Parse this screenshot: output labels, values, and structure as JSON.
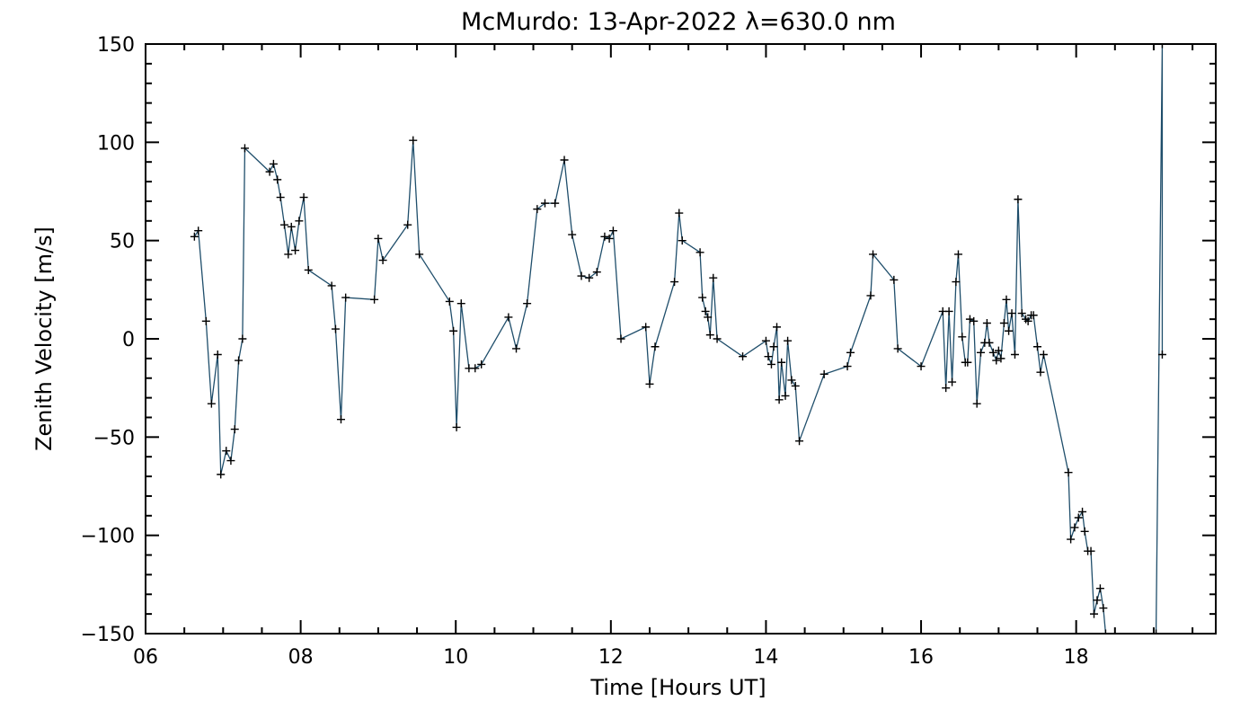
{
  "chart_data": {
    "type": "line",
    "title": "McMurdo: 13-Apr-2022 λ=630.0 nm",
    "xlabel": "Time [Hours UT]",
    "ylabel": "Zenith Velocity [m/s]",
    "xlim": [
      6,
      19.8
    ],
    "ylim": [
      -150,
      150
    ],
    "x_ticks": [
      6,
      8,
      10,
      12,
      14,
      16,
      18
    ],
    "x_tick_labels": [
      "06",
      "08",
      "10",
      "12",
      "14",
      "16",
      "18"
    ],
    "y_ticks": [
      -150,
      -100,
      -50,
      0,
      50,
      100,
      150
    ],
    "y_tick_labels": [
      "−150",
      "−100",
      "−50",
      "0",
      "50",
      "100",
      "150"
    ],
    "grid": false,
    "legend": "none",
    "line_color": "#1f4e6b",
    "marker_color": "#000000",
    "series": [
      {
        "marker": "+",
        "points": [
          [
            6.63,
            52
          ],
          [
            6.68,
            55
          ],
          [
            6.78,
            9
          ],
          [
            6.85,
            -33
          ],
          [
            6.93,
            -8
          ],
          [
            6.97,
            -69
          ],
          [
            7.04,
            -57
          ],
          [
            7.1,
            -62
          ],
          [
            7.15,
            -46
          ],
          [
            7.2,
            -11
          ],
          [
            7.25,
            0
          ],
          [
            7.28,
            97
          ],
          [
            7.6,
            85
          ],
          [
            7.65,
            89
          ],
          [
            7.7,
            81
          ],
          [
            7.74,
            72
          ],
          [
            7.79,
            58
          ],
          [
            7.84,
            43
          ],
          [
            7.88,
            57
          ],
          [
            7.93,
            45
          ],
          [
            7.98,
            60
          ],
          [
            8.04,
            72
          ],
          [
            8.1,
            35
          ],
          [
            8.4,
            27
          ],
          [
            8.45,
            5
          ],
          [
            8.52,
            -41
          ],
          [
            8.58,
            21
          ],
          [
            8.95,
            20
          ],
          [
            9.0,
            51
          ],
          [
            9.06,
            40
          ],
          [
            9.38,
            58
          ],
          [
            9.45,
            101
          ],
          [
            9.53,
            43
          ],
          [
            9.92,
            19
          ],
          [
            9.97,
            4
          ],
          [
            10.01,
            -45
          ],
          [
            10.07,
            18
          ],
          [
            10.17,
            -15
          ],
          [
            10.25,
            -15
          ],
          [
            10.33,
            -13
          ],
          [
            10.68,
            11
          ],
          [
            10.78,
            -5
          ],
          [
            10.92,
            18
          ],
          [
            11.05,
            66
          ],
          [
            11.15,
            69
          ],
          [
            11.28,
            69
          ],
          [
            11.4,
            91
          ],
          [
            11.5,
            53
          ],
          [
            11.62,
            32
          ],
          [
            11.72,
            31
          ],
          [
            11.82,
            34
          ],
          [
            11.92,
            52
          ],
          [
            11.98,
            51
          ],
          [
            12.03,
            55
          ],
          [
            12.13,
            0
          ],
          [
            12.45,
            6
          ],
          [
            12.5,
            -23
          ],
          [
            12.57,
            -4
          ],
          [
            12.82,
            29
          ],
          [
            12.88,
            64
          ],
          [
            12.92,
            50
          ],
          [
            13.15,
            44
          ],
          [
            13.18,
            21
          ],
          [
            13.22,
            14
          ],
          [
            13.25,
            11
          ],
          [
            13.28,
            2
          ],
          [
            13.32,
            31
          ],
          [
            13.37,
            0
          ],
          [
            13.7,
            -9
          ],
          [
            14.0,
            -1
          ],
          [
            14.03,
            -9
          ],
          [
            14.07,
            -13
          ],
          [
            14.1,
            -4
          ],
          [
            14.14,
            6
          ],
          [
            14.17,
            -31
          ],
          [
            14.2,
            -12
          ],
          [
            14.25,
            -29
          ],
          [
            14.28,
            -1
          ],
          [
            14.33,
            -21
          ],
          [
            14.38,
            -24
          ],
          [
            14.43,
            -52
          ],
          [
            14.75,
            -18
          ],
          [
            15.05,
            -14
          ],
          [
            15.09,
            -7
          ],
          [
            15.35,
            22
          ],
          [
            15.38,
            43
          ],
          [
            15.65,
            30
          ],
          [
            15.7,
            -5
          ],
          [
            16.0,
            -14
          ],
          [
            16.28,
            14
          ],
          [
            16.32,
            -25
          ],
          [
            16.36,
            14
          ],
          [
            16.4,
            -22
          ],
          [
            16.45,
            29
          ],
          [
            16.48,
            43
          ],
          [
            16.53,
            1
          ],
          [
            16.57,
            -12
          ],
          [
            16.6,
            -12
          ],
          [
            16.63,
            10
          ],
          [
            16.68,
            9
          ],
          [
            16.72,
            -33
          ],
          [
            16.77,
            -7
          ],
          [
            16.82,
            -2
          ],
          [
            16.85,
            8
          ],
          [
            16.88,
            -2
          ],
          [
            16.93,
            -7
          ],
          [
            16.97,
            -11
          ],
          [
            17.0,
            -6
          ],
          [
            17.03,
            -10
          ],
          [
            17.07,
            8
          ],
          [
            17.1,
            20
          ],
          [
            17.13,
            4
          ],
          [
            17.17,
            13
          ],
          [
            17.21,
            -8
          ],
          [
            17.25,
            71
          ],
          [
            17.3,
            13
          ],
          [
            17.35,
            10
          ],
          [
            17.38,
            9
          ],
          [
            17.42,
            12
          ],
          [
            17.45,
            12
          ],
          [
            17.5,
            -4
          ],
          [
            17.54,
            -17
          ],
          [
            17.58,
            -8
          ],
          [
            17.9,
            -68
          ],
          [
            17.93,
            -102
          ],
          [
            17.98,
            -96
          ],
          [
            18.03,
            -91
          ],
          [
            18.08,
            -88
          ],
          [
            18.11,
            -98
          ],
          [
            18.15,
            -108
          ],
          [
            18.19,
            -108
          ],
          [
            18.23,
            -140
          ],
          [
            18.27,
            -133
          ],
          [
            18.31,
            -127
          ],
          [
            18.35,
            -137
          ],
          [
            18.38,
            -150
          ],
          [
            19.03,
            -150
          ],
          [
            19.11,
            150
          ],
          [
            19.11,
            -8
          ]
        ]
      }
    ]
  }
}
